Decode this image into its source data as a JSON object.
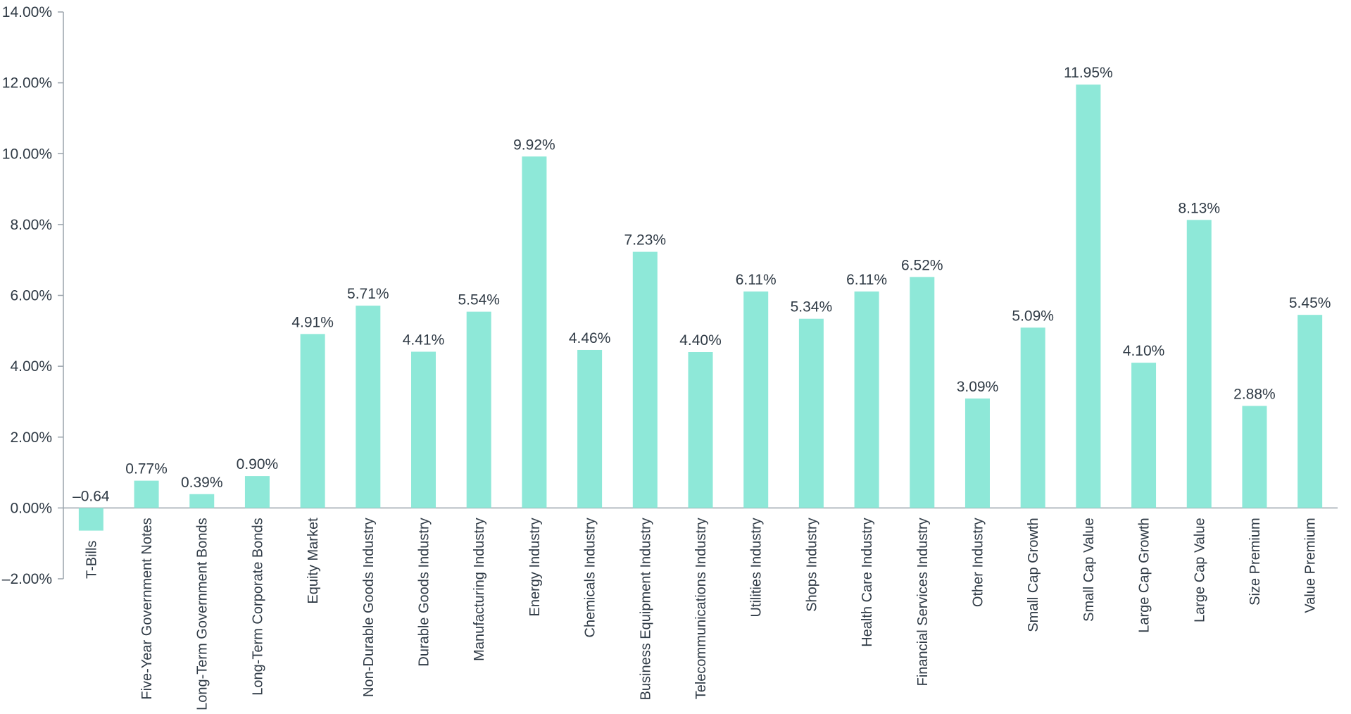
{
  "chart_data": {
    "type": "bar",
    "title": "",
    "xlabel": "",
    "ylabel": "",
    "ylim": [
      -2,
      14
    ],
    "yticks": [
      -2,
      0,
      2,
      4,
      6,
      8,
      10,
      12,
      14
    ],
    "ytick_labels": [
      "–2.00%",
      "0.00%",
      "2.00%",
      "4.00%",
      "6.00%",
      "8.00%",
      "10.00%",
      "12.00%",
      "14.00%"
    ],
    "grid": false,
    "bar_color": "#8ee8d8",
    "categories": [
      "T-Bills",
      "Five-Year Government Notes",
      "Long-Term Government Bonds",
      "Long-Term Corporate Bonds",
      "Equity Market",
      "Non-Durable Goods Industry",
      "Durable Goods Industry",
      "Manufacturing Industry",
      "Energy Industry",
      "Chemicals Industry",
      "Business Equipment Industry",
      "Telecommunications Industry",
      "Utilities Industry",
      "Shops Industry",
      "Health Care Industry",
      "Financial Services Industry",
      "Other Industry",
      "Small Cap Growth",
      "Small Cap Value",
      "Large Cap Growth",
      "Large Cap Value",
      "Size Premium",
      "Value Premium"
    ],
    "values": [
      -0.64,
      0.77,
      0.39,
      0.9,
      4.91,
      5.71,
      4.41,
      5.54,
      9.92,
      4.46,
      7.23,
      4.4,
      6.11,
      5.34,
      6.11,
      6.52,
      3.09,
      5.09,
      11.95,
      4.1,
      8.13,
      2.88,
      5.45
    ],
    "value_labels": [
      "–0.64",
      "0.77%",
      "0.39%",
      "0.90%",
      "4.91%",
      "5.71%",
      "4.41%",
      "5.54%",
      "9.92%",
      "4.46%",
      "7.23%",
      "4.40%",
      "6.11%",
      "5.34%",
      "6.11%",
      "6.52%",
      "3.09%",
      "5.09%",
      "11.95%",
      "4.10%",
      "8.13%",
      "2.88%",
      "5.45%"
    ]
  }
}
